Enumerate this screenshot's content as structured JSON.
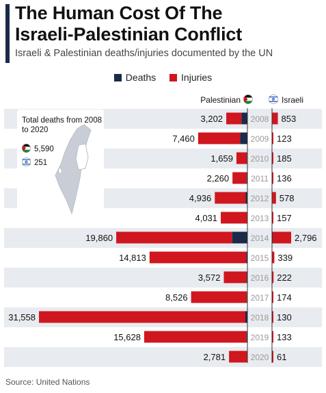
{
  "header": {
    "title_line1": "The Human Cost Of The",
    "title_line2": "Israeli-Palestinian Conflict",
    "subtitle": "Israeli & Palestinian deaths/injuries documented by the UN"
  },
  "legend": {
    "deaths_label": "Deaths",
    "injuries_label": "Injuries"
  },
  "columns": {
    "palestinian_label": "Palestinian",
    "israeli_label": "Israeli"
  },
  "totals_box": {
    "title": "Total deaths from 2008 to 2020",
    "palestinian_value": "5,590",
    "israeli_value": "251"
  },
  "source": "Source: United Nations",
  "colors": {
    "deaths": "#1b2a4a",
    "injuries": "#d0161e",
    "row_shade": "#e8ebef",
    "title_bar": "#1b2a4a"
  },
  "icons": {
    "palestinian": "palestinian-flag-icon",
    "israeli": "israeli-flag-icon",
    "map": "map-icon"
  },
  "chart_data": {
    "type": "bar",
    "orientation": "horizontal-diverging",
    "categories": [
      "2008",
      "2009",
      "2010",
      "2011",
      "2012",
      "2013",
      "2014",
      "2015",
      "2016",
      "2017",
      "2018",
      "2019",
      "2020"
    ],
    "series": [
      {
        "name": "Palestinian",
        "labels": [
          "3,202",
          "7,460",
          "1,659",
          "2,260",
          "4,936",
          "4,031",
          "19,860",
          "14,813",
          "3,572",
          "8,526",
          "31,558",
          "15,628",
          "2,781"
        ],
        "values": [
          3202,
          7460,
          1659,
          2260,
          4936,
          4031,
          19860,
          14813,
          3572,
          8526,
          31558,
          15628,
          2781
        ],
        "deaths_values": [
          900,
          1100,
          80,
          120,
          260,
          40,
          2300,
          170,
          110,
          80,
          310,
          130,
          40
        ]
      },
      {
        "name": "Israeli",
        "labels": [
          "853",
          "123",
          "185",
          "136",
          "578",
          "157",
          "2,796",
          "339",
          "222",
          "174",
          "130",
          "133",
          "61"
        ],
        "values": [
          853,
          123,
          185,
          136,
          578,
          157,
          2796,
          339,
          222,
          174,
          130,
          133,
          61
        ],
        "deaths_values": [
          30,
          10,
          10,
          10,
          10,
          0,
          90,
          30,
          20,
          20,
          10,
          10,
          5
        ]
      }
    ]
  }
}
